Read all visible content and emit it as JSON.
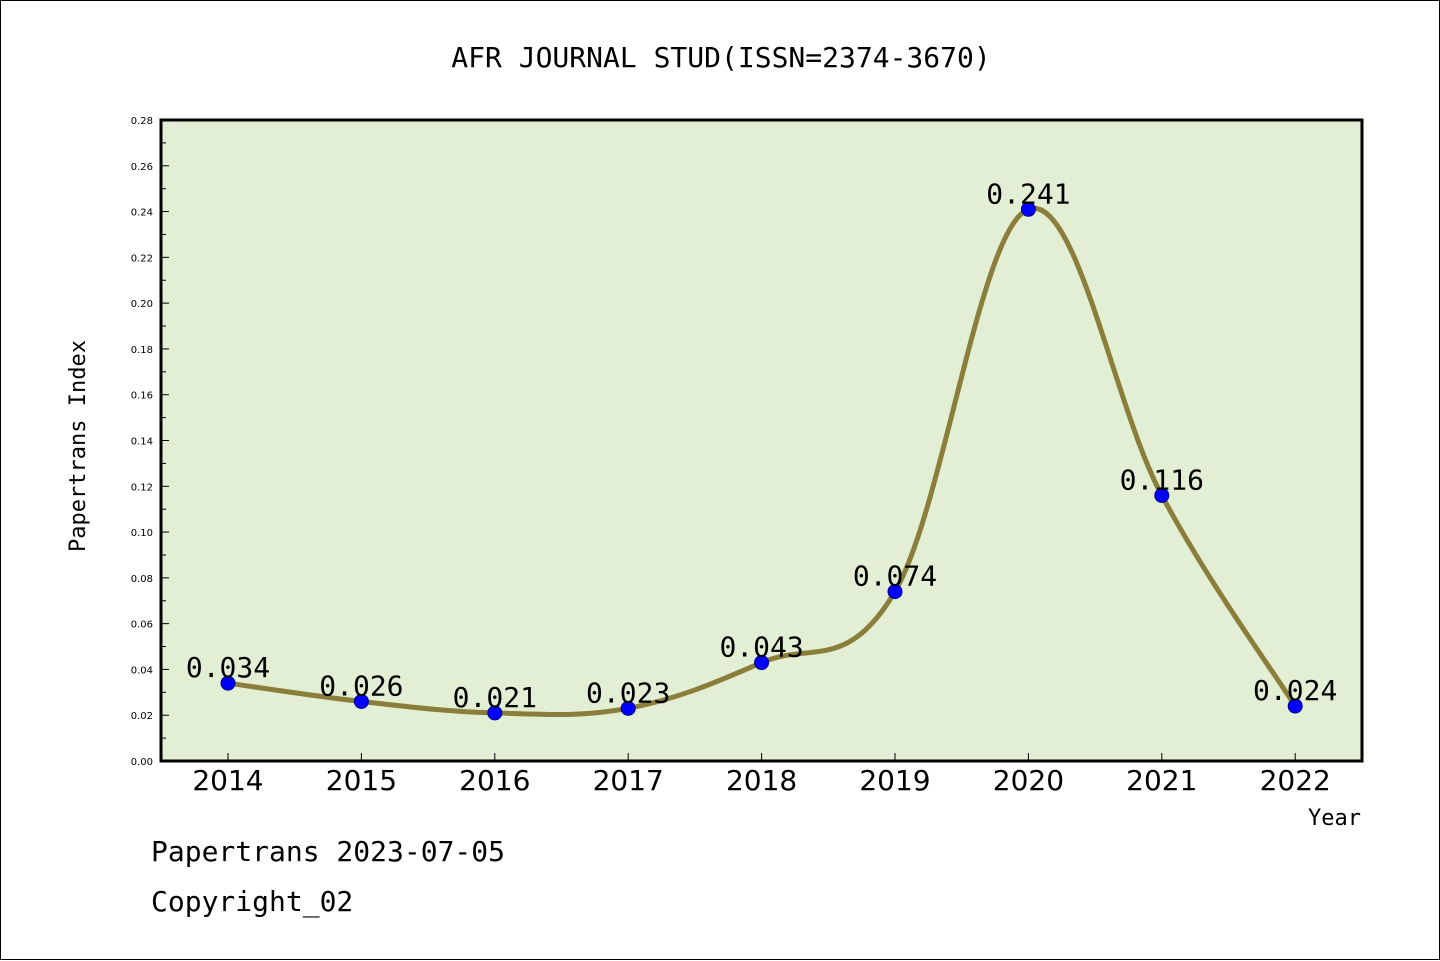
{
  "chart_data": {
    "type": "line",
    "title": "AFR JOURNAL STUD(ISSN=2374-3670)",
    "xlabel": "Year",
    "ylabel": "Papertrans Index",
    "categories": [
      "2014",
      "2015",
      "2016",
      "2017",
      "2018",
      "2019",
      "2020",
      "2021",
      "2022"
    ],
    "series": [
      {
        "values": [
          0.034,
          0.026,
          0.021,
          0.023,
          0.043,
          0.074,
          0.241,
          0.116,
          0.024
        ]
      }
    ],
    "data_labels": [
      "0.034",
      "0.026",
      "0.021",
      "0.023",
      "0.043",
      "0.074",
      "0.241",
      "0.116",
      "0.024"
    ],
    "ylim": [
      0,
      0.28
    ],
    "yticks": [
      "0.00",
      "0.02",
      "0.04",
      "0.06",
      "0.08",
      "0.10",
      "0.12",
      "0.14",
      "0.16",
      "0.18",
      "0.20",
      "0.22",
      "0.24",
      "0.26",
      "0.28"
    ],
    "grid": false,
    "colors": {
      "plot_bg": "#e2efd5",
      "line": "#8b7d3a",
      "marker": "#0000ff"
    }
  },
  "footer": {
    "date_line": "Papertrans 2023-07-05",
    "copyright": "Copyright_02"
  }
}
